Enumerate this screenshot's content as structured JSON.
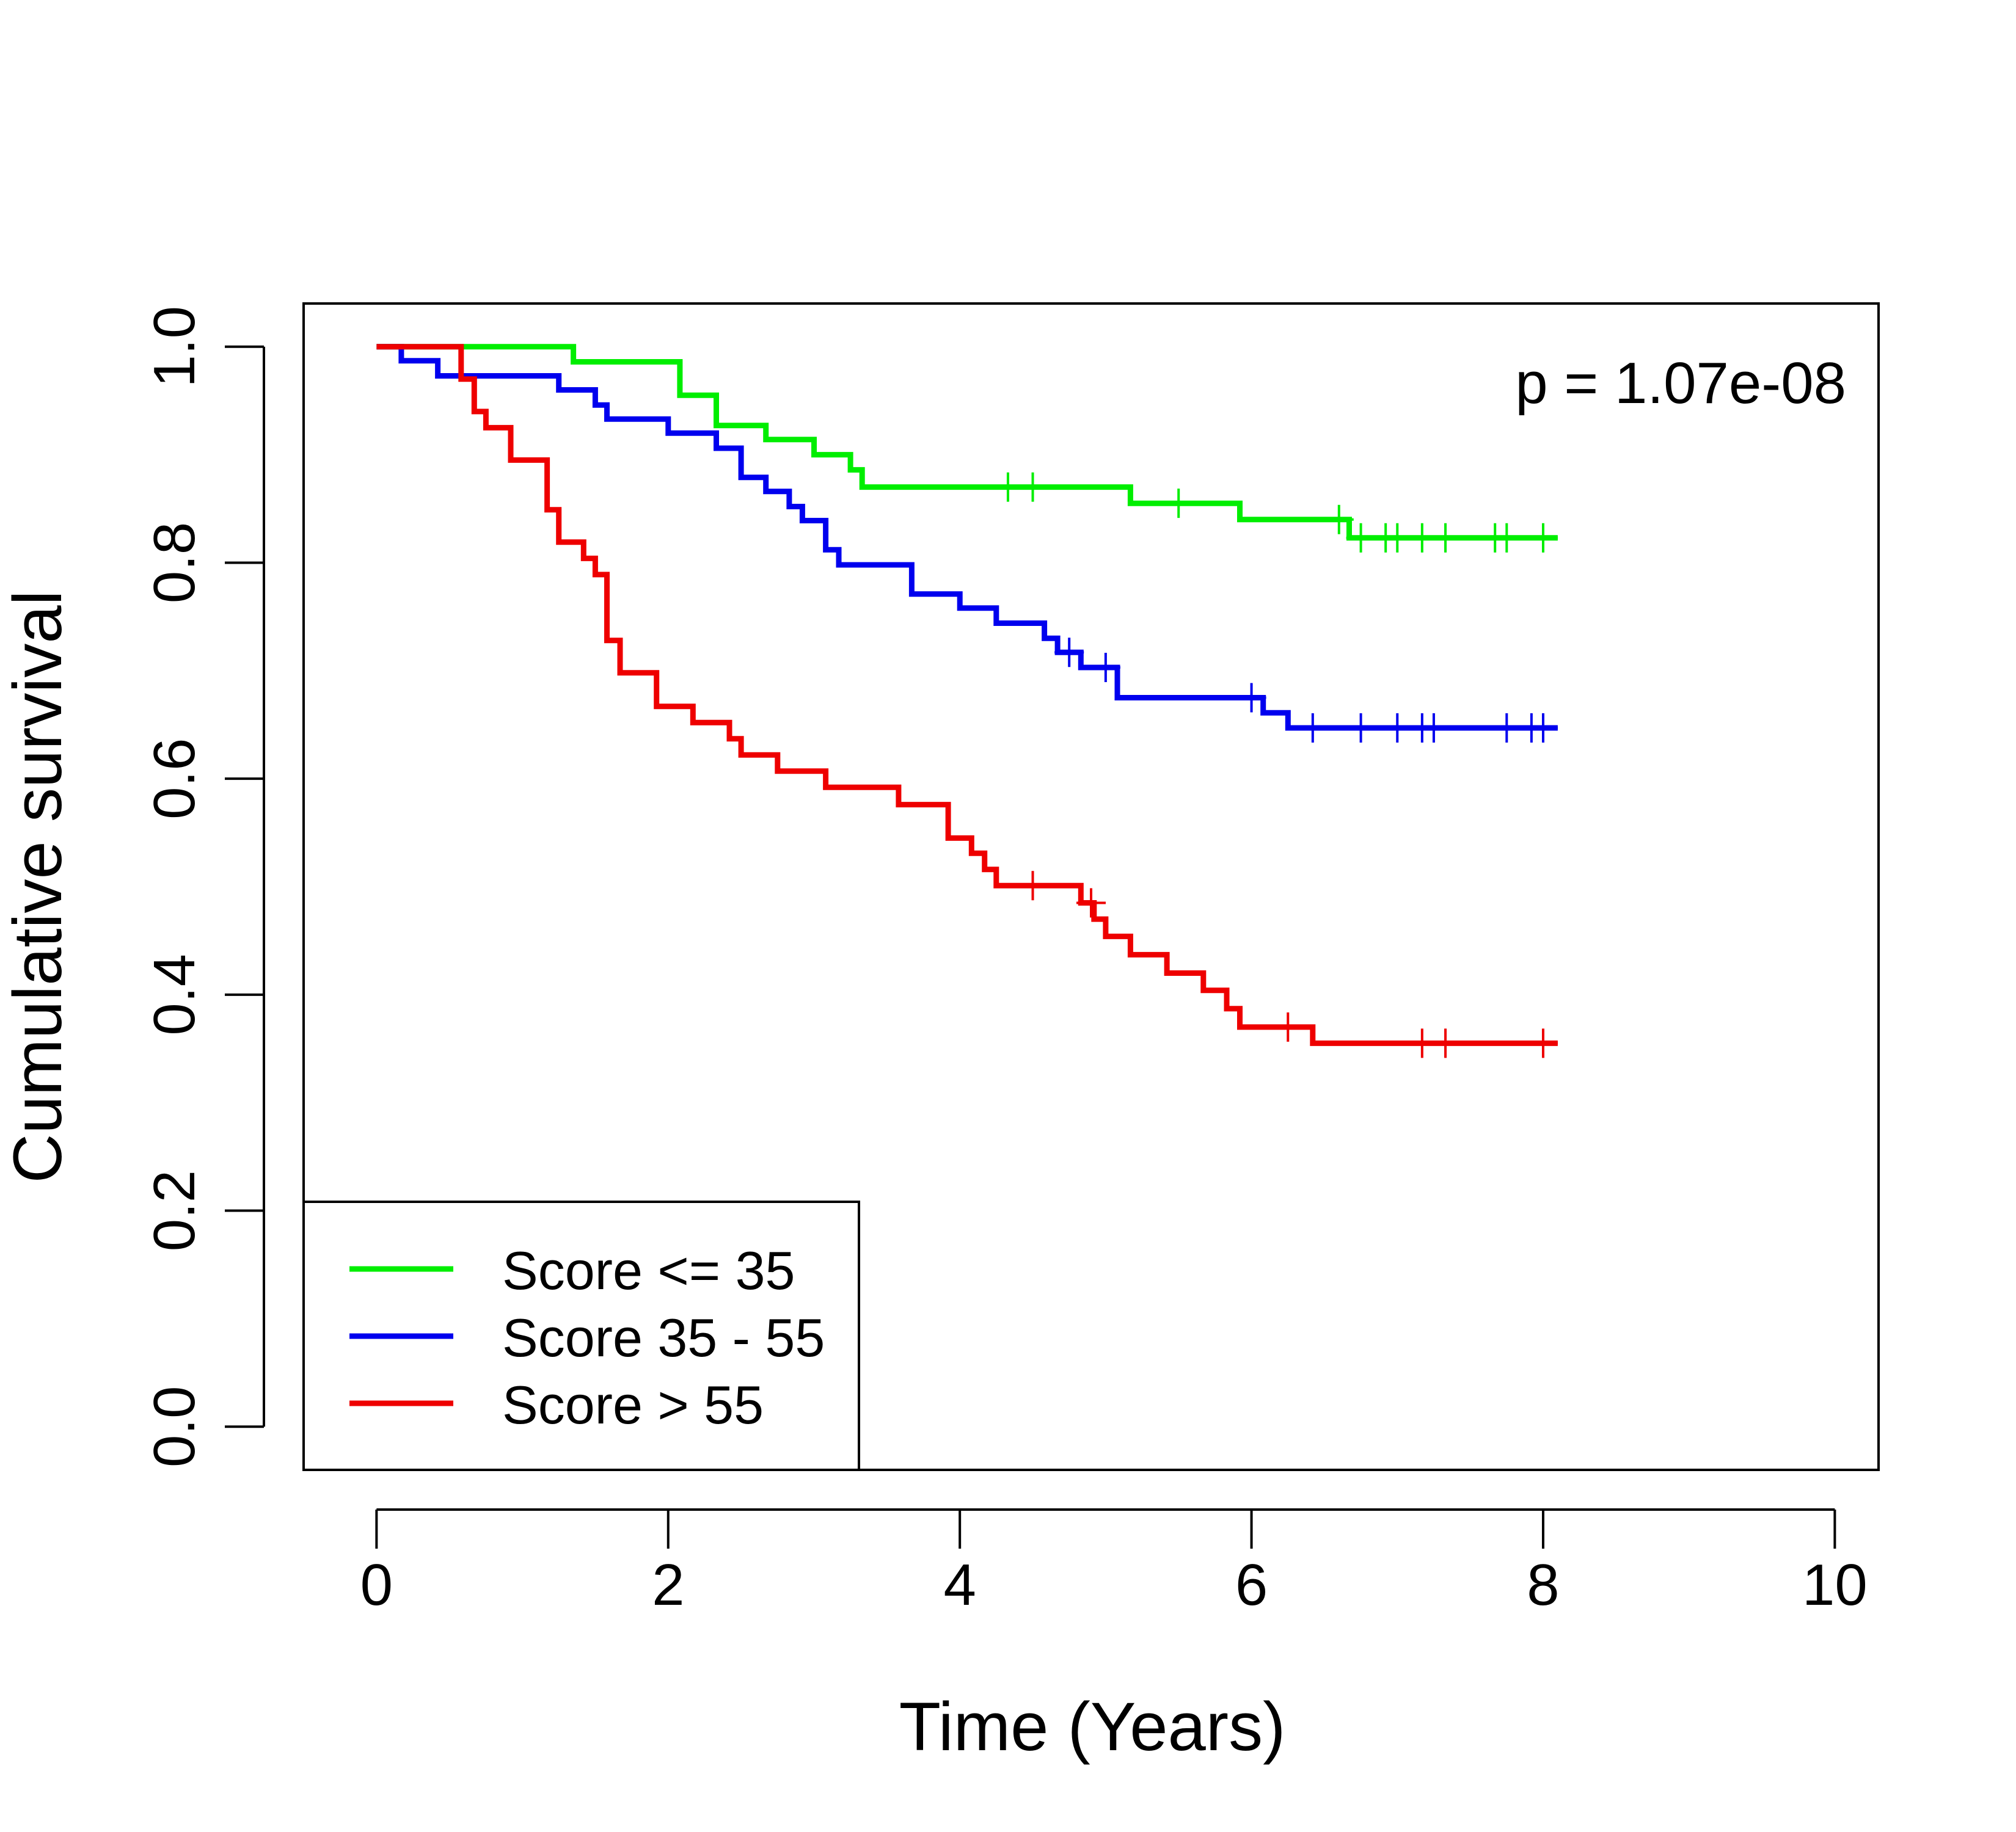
{
  "chart_data": {
    "type": "line",
    "subtype": "kaplan-meier",
    "xlabel": "Time (Years)",
    "ylabel": "Cumulative survival",
    "xlim": [
      -0.5,
      10.3
    ],
    "ylim": [
      -0.04,
      1.04
    ],
    "x_ticks": [
      0,
      2,
      4,
      6,
      8,
      10
    ],
    "x_tick_labels": [
      "0",
      "2",
      "4",
      "6",
      "8",
      "10"
    ],
    "y_ticks": [
      0,
      0.2,
      0.4,
      0.6,
      0.8,
      1.0
    ],
    "y_tick_labels": [
      "0.0",
      "0.2",
      "0.4",
      "0.6",
      "0.8",
      "1.0"
    ],
    "grid": false,
    "legend_position": "bottom-left",
    "annotation": "p = 1.07e-08",
    "annotation_position": "top-right",
    "series": [
      {
        "name": "Score <= 35",
        "color": "#00ee00",
        "steps": [
          [
            0,
            1.0
          ],
          [
            1.35,
            0.986
          ],
          [
            2.08,
            0.955
          ],
          [
            2.33,
            0.927
          ],
          [
            2.67,
            0.914
          ],
          [
            3.0,
            0.9
          ],
          [
            3.25,
            0.886
          ],
          [
            3.33,
            0.87
          ],
          [
            5.17,
            0.855
          ],
          [
            5.92,
            0.84
          ],
          [
            6.67,
            0.823
          ]
        ],
        "end_x": 8.1,
        "censor_x": [
          4.33,
          4.5,
          5.5,
          6.6,
          6.75,
          6.92,
          7.0,
          7.17,
          7.33,
          7.67,
          7.75,
          8.0
        ]
      },
      {
        "name": "Score 35 - 55",
        "color": "#0000ee",
        "steps": [
          [
            0,
            1.0
          ],
          [
            0.17,
            0.987
          ],
          [
            0.42,
            0.973
          ],
          [
            1.25,
            0.96
          ],
          [
            1.5,
            0.946
          ],
          [
            1.58,
            0.933
          ],
          [
            2.0,
            0.92
          ],
          [
            2.33,
            0.906
          ],
          [
            2.5,
            0.879
          ],
          [
            2.67,
            0.866
          ],
          [
            2.83,
            0.852
          ],
          [
            2.92,
            0.839
          ],
          [
            3.08,
            0.812
          ],
          [
            3.17,
            0.798
          ],
          [
            3.67,
            0.771
          ],
          [
            4.0,
            0.758
          ],
          [
            4.25,
            0.744
          ],
          [
            4.58,
            0.73
          ],
          [
            4.67,
            0.717
          ],
          [
            4.83,
            0.703
          ],
          [
            5.08,
            0.675
          ],
          [
            6.08,
            0.661
          ],
          [
            6.25,
            0.647
          ]
        ],
        "end_x": 8.1,
        "censor_x": [
          4.75,
          5.0,
          6.0,
          6.42,
          6.75,
          7.0,
          7.17,
          7.25,
          7.75,
          7.92,
          8.0
        ]
      },
      {
        "name": "Score > 55",
        "color": "#ee0000",
        "steps": [
          [
            0,
            1.0
          ],
          [
            0.58,
            0.97
          ],
          [
            0.67,
            0.94
          ],
          [
            0.75,
            0.925
          ],
          [
            0.92,
            0.895
          ],
          [
            1.17,
            0.849
          ],
          [
            1.25,
            0.819
          ],
          [
            1.42,
            0.804
          ],
          [
            1.5,
            0.789
          ],
          [
            1.58,
            0.728
          ],
          [
            1.67,
            0.698
          ],
          [
            1.92,
            0.667
          ],
          [
            2.17,
            0.652
          ],
          [
            2.42,
            0.637
          ],
          [
            2.5,
            0.622
          ],
          [
            2.75,
            0.607
          ],
          [
            3.08,
            0.592
          ],
          [
            3.58,
            0.576
          ],
          [
            3.92,
            0.545
          ],
          [
            4.08,
            0.531
          ],
          [
            4.17,
            0.516
          ],
          [
            4.25,
            0.501
          ],
          [
            4.83,
            0.485
          ],
          [
            4.92,
            0.47
          ],
          [
            5.0,
            0.454
          ],
          [
            5.17,
            0.437
          ],
          [
            5.42,
            0.42
          ],
          [
            5.67,
            0.404
          ],
          [
            5.83,
            0.387
          ],
          [
            5.92,
            0.37
          ],
          [
            6.42,
            0.355
          ]
        ],
        "end_x": 8.1,
        "censor_x": [
          4.5,
          4.9,
          6.25,
          7.17,
          7.33,
          8.0
        ]
      }
    ]
  }
}
